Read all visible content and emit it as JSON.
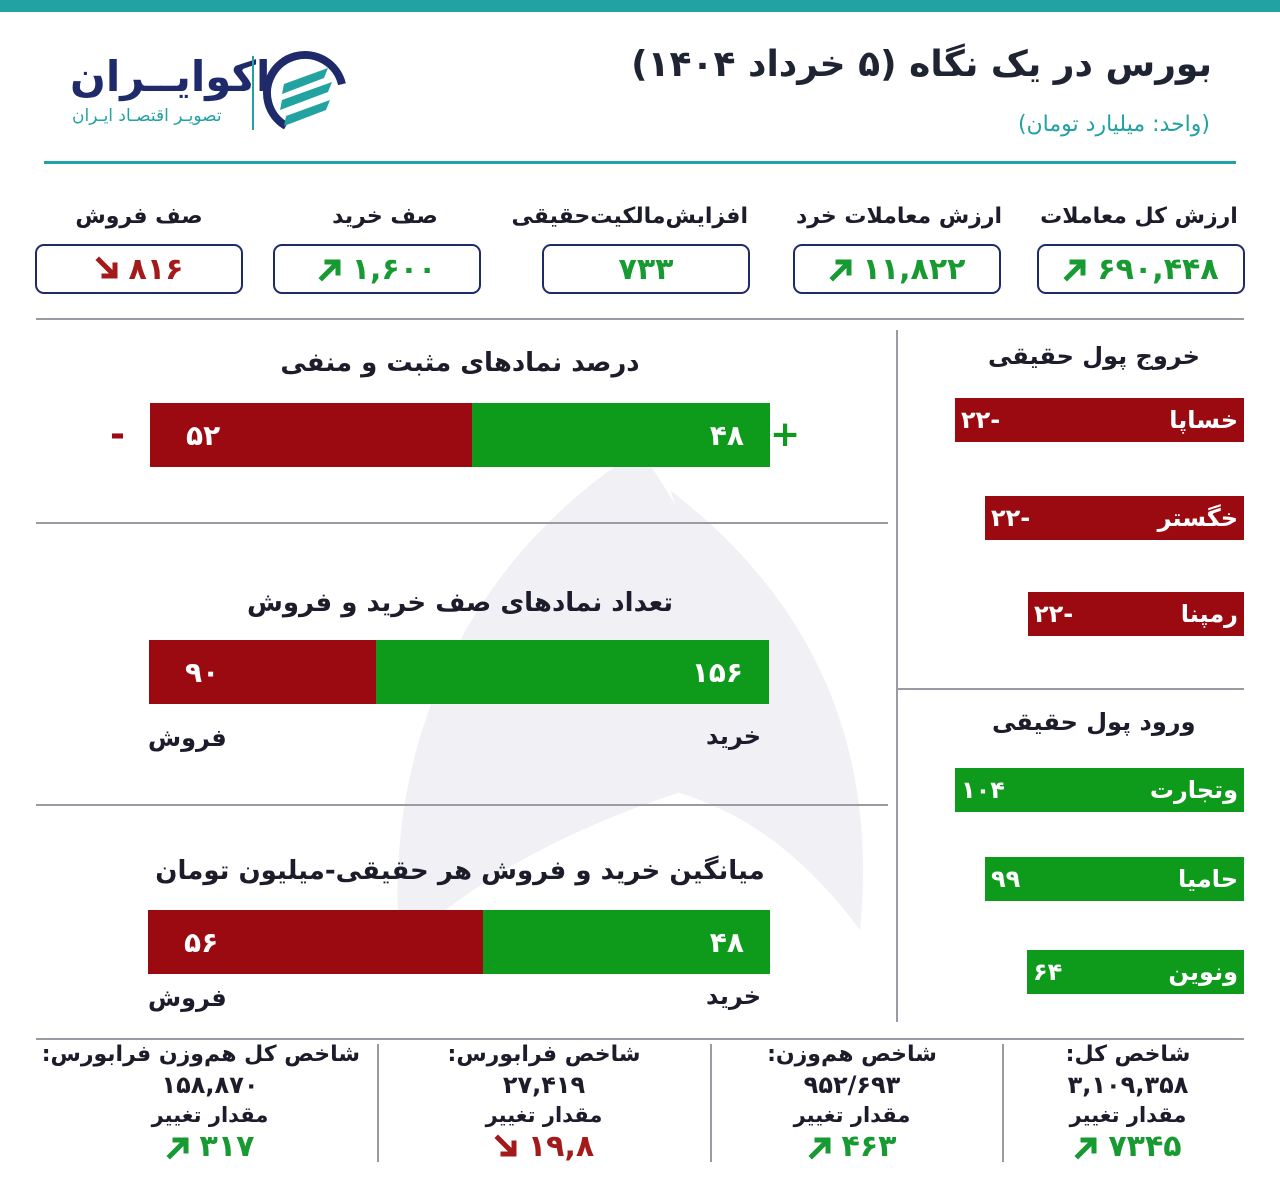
{
  "header": {
    "title": "بورس در یک نگاه (۵ خرداد ۱۴۰۴)",
    "unit": "(واحد: میلیارد تومان)",
    "brand_name": "اکوایــران",
    "brand_tagline": "تصویـر اقتصـاد ایـران"
  },
  "stats": [
    {
      "label": "ارزش کل معاملات",
      "value": "۶۹۰,۴۴۸",
      "trend": "up"
    },
    {
      "label": "ارزش معاملات خرد",
      "value": "۱۱,۸۲۲",
      "trend": "up"
    },
    {
      "label": "افزایش‌مالکیت‌حقیقی",
      "value": "۷۳۳",
      "trend": "none"
    },
    {
      "label": "صف خرید",
      "value": "۱,۶۰۰",
      "trend": "up"
    },
    {
      "label": "صف فروش",
      "value": "۸۱۶",
      "trend": "down"
    }
  ],
  "sections": {
    "pos_neg": {
      "title": "درصد نمادهای مثبت و منفی",
      "positive": "۴۸",
      "negative": "۵۲",
      "positive_pct": 48,
      "negative_pct": 52,
      "plus_sign": "+",
      "minus_sign": "-"
    },
    "queues": {
      "title": "تعداد نمادهای صف خرید و فروش",
      "buy": "۱۵۶",
      "sell": "۹۰",
      "buy_count": 156,
      "sell_count": 90,
      "buy_label": "خرید",
      "sell_label": "فروش"
    },
    "avg": {
      "title": "میانگین خرید و فروش هر حقیقی-میلیون تومان",
      "buy": "۴۸",
      "sell": "۵۶",
      "buy_value": 48,
      "sell_value": 56,
      "buy_label": "خرید",
      "sell_label": "فروش"
    }
  },
  "outflow": {
    "title": "خروج پول حقیقی",
    "items": [
      {
        "name": "خساپا",
        "value": "-۲۲",
        "amount": -22
      },
      {
        "name": "خگستر",
        "value": "-۲۲",
        "amount": -22
      },
      {
        "name": "رمپنا",
        "value": "-۲۲",
        "amount": -22
      }
    ]
  },
  "inflow": {
    "title": "ورود پول حقیقی",
    "items": [
      {
        "name": "وتجارت",
        "value": "۱۰۴",
        "amount": 104
      },
      {
        "name": "حامیا",
        "value": "۹۹",
        "amount": 99
      },
      {
        "name": "ونوین",
        "value": "۶۴",
        "amount": 64
      }
    ]
  },
  "indices": [
    {
      "name": "شاخص کل:",
      "value": "۳,۱۰۹,۳۵۸",
      "change_label": "مقدار تغییر",
      "delta": "۷۳۴۵",
      "trend": "up"
    },
    {
      "name": "شاخص هم‌وزن:",
      "value": "۹۵۲/۶۹۳",
      "change_label": "مقدار تغییر",
      "delta": "۴۶۳",
      "trend": "up"
    },
    {
      "name": "شاخص فرابورس:",
      "value": "۲۷,۴۱۹",
      "change_label": "مقدار تغییر",
      "delta": "۱۹,۸",
      "trend": "down"
    },
    {
      "name": "شاخص کل هم‌وزن فرابورس:",
      "value": "۱۵۸,۸۷۰",
      "change_label": "مقدار تغییر",
      "delta": "۳۱۷",
      "trend": "up"
    }
  ],
  "colors": {
    "teal": "#22a3a1",
    "navy": "#1f2a6b",
    "green": "#0e9a1b",
    "red": "#9a0a10"
  }
}
